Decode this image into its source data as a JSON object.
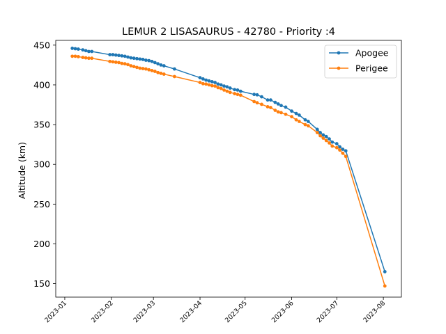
{
  "chart_data": {
    "type": "line",
    "title": "LEMUR 2 LISASAURUS - 42780 - Priority :4",
    "xlabel": "",
    "ylabel": "Altitude (km)",
    "xlim": [
      "2022-12-26",
      "2023-08-13"
    ],
    "ylim": [
      133,
      456
    ],
    "x_ticks": [
      "2023-01",
      "2023-02",
      "2023-03",
      "2023-04",
      "2023-05",
      "2023-06",
      "2023-07",
      "2023-08"
    ],
    "y_ticks": [
      150,
      200,
      250,
      300,
      350,
      400,
      450
    ],
    "legend_position": "top-right",
    "grid": false,
    "series": [
      {
        "name": "Apogee",
        "color": "#1f77b4",
        "points": [
          [
            "2023-01-06",
            446
          ],
          [
            "2023-01-08",
            445.5
          ],
          [
            "2023-01-10",
            445
          ],
          [
            "2023-01-13",
            444
          ],
          [
            "2023-01-15",
            443
          ],
          [
            "2023-01-17",
            442
          ],
          [
            "2023-01-19",
            442
          ],
          [
            "2023-01-31",
            438
          ],
          [
            "2023-02-02",
            438
          ],
          [
            "2023-02-04",
            437.5
          ],
          [
            "2023-02-06",
            437
          ],
          [
            "2023-02-08",
            436.5
          ],
          [
            "2023-02-10",
            436
          ],
          [
            "2023-02-12",
            435
          ],
          [
            "2023-02-14",
            434
          ],
          [
            "2023-02-16",
            433.5
          ],
          [
            "2023-02-18",
            433
          ],
          [
            "2023-02-20",
            432.5
          ],
          [
            "2023-02-22",
            432
          ],
          [
            "2023-02-24",
            431
          ],
          [
            "2023-02-26",
            430.5
          ],
          [
            "2023-02-28",
            429.5
          ],
          [
            "2023-03-02",
            428
          ],
          [
            "2023-03-04",
            426.5
          ],
          [
            "2023-03-06",
            425
          ],
          [
            "2023-03-08",
            424
          ],
          [
            "2023-03-15",
            420
          ],
          [
            "2023-04-01",
            409
          ],
          [
            "2023-04-03",
            407.5
          ],
          [
            "2023-04-05",
            406
          ],
          [
            "2023-04-07",
            405
          ],
          [
            "2023-04-09",
            404
          ],
          [
            "2023-04-11",
            403
          ],
          [
            "2023-04-13",
            401
          ],
          [
            "2023-04-15",
            400
          ],
          [
            "2023-04-17",
            398.5
          ],
          [
            "2023-04-19",
            397.5
          ],
          [
            "2023-04-21",
            396
          ],
          [
            "2023-04-24",
            394
          ],
          [
            "2023-04-26",
            393.5
          ],
          [
            "2023-04-28",
            392
          ],
          [
            "2023-05-07",
            388
          ],
          [
            "2023-05-09",
            387.5
          ],
          [
            "2023-05-12",
            385
          ],
          [
            "2023-05-16",
            381
          ],
          [
            "2023-05-18",
            381
          ],
          [
            "2023-05-21",
            378
          ],
          [
            "2023-05-23",
            376
          ],
          [
            "2023-05-25",
            374
          ],
          [
            "2023-05-28",
            372
          ],
          [
            "2023-06-01",
            367
          ],
          [
            "2023-06-04",
            364
          ],
          [
            "2023-06-06",
            362
          ],
          [
            "2023-06-10",
            356
          ],
          [
            "2023-06-12",
            354
          ],
          [
            "2023-06-18",
            344
          ],
          [
            "2023-06-20",
            340
          ],
          [
            "2023-06-22",
            337
          ],
          [
            "2023-06-24",
            335
          ],
          [
            "2023-06-26",
            332
          ],
          [
            "2023-06-28",
            328
          ],
          [
            "2023-07-01",
            326
          ],
          [
            "2023-07-03",
            322
          ],
          [
            "2023-07-05",
            319
          ],
          [
            "2023-07-07",
            317
          ],
          [
            "2023-08-02",
            165
          ]
        ]
      },
      {
        "name": "Perigee",
        "color": "#ff7f0e",
        "points": [
          [
            "2023-01-06",
            436
          ],
          [
            "2023-01-08",
            436
          ],
          [
            "2023-01-10",
            435.5
          ],
          [
            "2023-01-13",
            434.5
          ],
          [
            "2023-01-15",
            434
          ],
          [
            "2023-01-17",
            433.5
          ],
          [
            "2023-01-19",
            433.5
          ],
          [
            "2023-01-31",
            429.5
          ],
          [
            "2023-02-02",
            429
          ],
          [
            "2023-02-04",
            428.5
          ],
          [
            "2023-02-06",
            428
          ],
          [
            "2023-02-08",
            427
          ],
          [
            "2023-02-10",
            426.5
          ],
          [
            "2023-02-12",
            425.5
          ],
          [
            "2023-02-14",
            424
          ],
          [
            "2023-02-16",
            423
          ],
          [
            "2023-02-18",
            422
          ],
          [
            "2023-02-20",
            421
          ],
          [
            "2023-02-22",
            420.5
          ],
          [
            "2023-02-24",
            420
          ],
          [
            "2023-02-26",
            419
          ],
          [
            "2023-02-28",
            418
          ],
          [
            "2023-03-02",
            417
          ],
          [
            "2023-03-04",
            415.5
          ],
          [
            "2023-03-06",
            414.5
          ],
          [
            "2023-03-08",
            413.5
          ],
          [
            "2023-03-15",
            410.5
          ],
          [
            "2023-04-01",
            403
          ],
          [
            "2023-04-03",
            401.5
          ],
          [
            "2023-04-05",
            401
          ],
          [
            "2023-04-07",
            400
          ],
          [
            "2023-04-09",
            399
          ],
          [
            "2023-04-11",
            398.5
          ],
          [
            "2023-04-13",
            396.5
          ],
          [
            "2023-04-15",
            395.5
          ],
          [
            "2023-04-17",
            393.5
          ],
          [
            "2023-04-19",
            392
          ],
          [
            "2023-04-21",
            390.5
          ],
          [
            "2023-04-24",
            389
          ],
          [
            "2023-04-26",
            388
          ],
          [
            "2023-04-28",
            387
          ],
          [
            "2023-05-07",
            379
          ],
          [
            "2023-05-09",
            377.5
          ],
          [
            "2023-05-12",
            375.5
          ],
          [
            "2023-05-16",
            372.5
          ],
          [
            "2023-05-18",
            371.5
          ],
          [
            "2023-05-21",
            368
          ],
          [
            "2023-05-23",
            366
          ],
          [
            "2023-05-25",
            365
          ],
          [
            "2023-05-28",
            363
          ],
          [
            "2023-06-01",
            360
          ],
          [
            "2023-06-04",
            356
          ],
          [
            "2023-06-06",
            354
          ],
          [
            "2023-06-10",
            350
          ],
          [
            "2023-06-12",
            348.5
          ],
          [
            "2023-06-18",
            340
          ],
          [
            "2023-06-20",
            336
          ],
          [
            "2023-06-22",
            333
          ],
          [
            "2023-06-24",
            330
          ],
          [
            "2023-06-26",
            327
          ],
          [
            "2023-06-28",
            323
          ],
          [
            "2023-07-01",
            321
          ],
          [
            "2023-07-03",
            318
          ],
          [
            "2023-07-05",
            314
          ],
          [
            "2023-07-07",
            310
          ],
          [
            "2023-08-02",
            147
          ]
        ]
      }
    ]
  }
}
